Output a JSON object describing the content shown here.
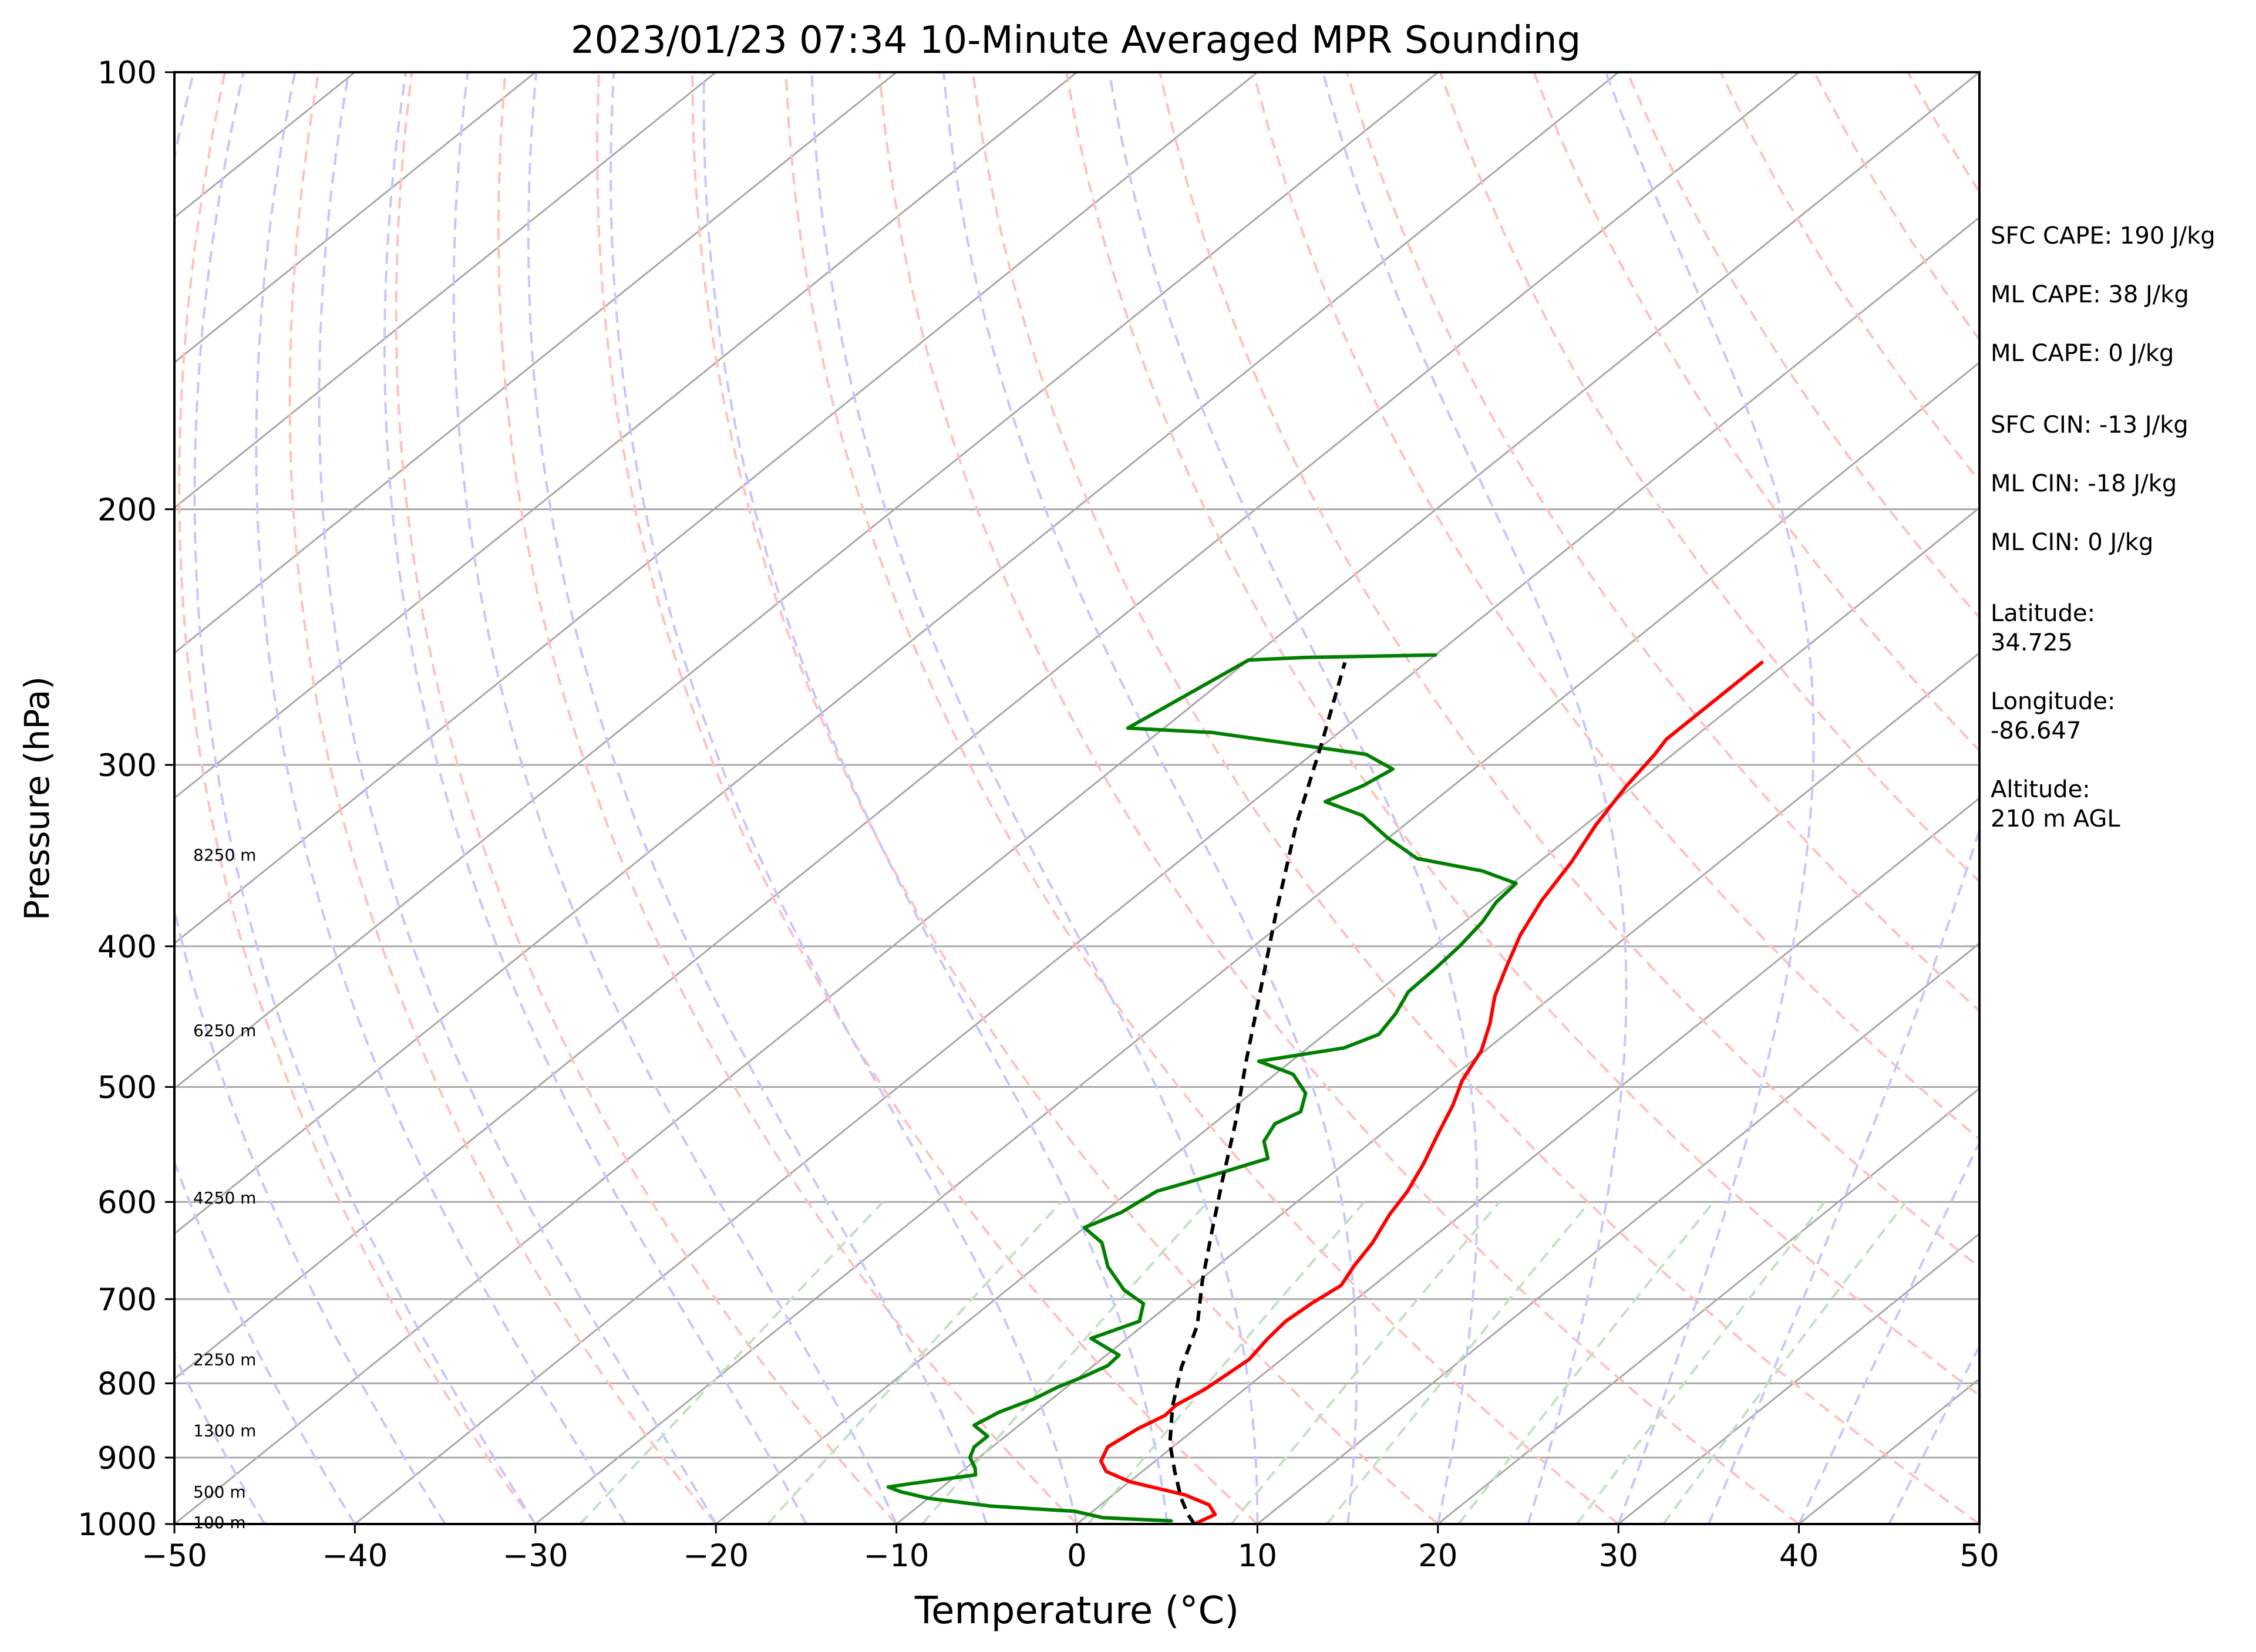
{
  "chart_data": {
    "type": "line",
    "title": "2023/01/23 07:34 10-Minute Averaged MPR Sounding",
    "xlabel": "Temperature (°C)",
    "ylabel": "Pressure (hPa)",
    "x_axis": {
      "min": -50,
      "max": 50,
      "ticks": [
        "−50",
        "−40",
        "−30",
        "−20",
        "−10",
        "0",
        "10",
        "20",
        "30",
        "40",
        "50"
      ]
    },
    "y_axis": {
      "scale": "log",
      "min": 100,
      "max": 1000,
      "ticks": [
        "100",
        "200",
        "300",
        "400",
        "500",
        "600",
        "700",
        "800",
        "900",
        "1000"
      ]
    },
    "skew": "skew-T log-P",
    "background_lines": {
      "isotherms": {
        "color": "#a9a9a9"
      },
      "dry_adiabats": {
        "color": "#ffc0c0"
      },
      "moist_adiabats": {
        "color": "#c6c6ff"
      },
      "mixing_ratio_lines": {
        "color": "#c3e0c3"
      }
    },
    "series": [
      {
        "kind": "temperature",
        "color": "#ff0000",
        "points": [
          [
            1000,
            6.5
          ],
          [
            985,
            7
          ],
          [
            970,
            6
          ],
          [
            955,
            4
          ],
          [
            935,
            0
          ],
          [
            920,
            -2
          ],
          [
            905,
            -3
          ],
          [
            885,
            -3.6
          ],
          [
            860,
            -3.2
          ],
          [
            842,
            -2.6
          ],
          [
            828,
            -2.7
          ],
          [
            808,
            -2.2
          ],
          [
            790,
            -2
          ],
          [
            770,
            -1.8
          ],
          [
            745,
            -2.2
          ],
          [
            725,
            -2.4
          ],
          [
            705,
            -2.2
          ],
          [
            685,
            -1.8
          ],
          [
            665,
            -2.4
          ],
          [
            640,
            -3
          ],
          [
            612,
            -4
          ],
          [
            590,
            -4.6
          ],
          [
            565,
            -5.6
          ],
          [
            540,
            -6.8
          ],
          [
            515,
            -8
          ],
          [
            495,
            -9.2
          ],
          [
            472,
            -10.2
          ],
          [
            452,
            -11.6
          ],
          [
            433,
            -13.2
          ],
          [
            413,
            -14.6
          ],
          [
            393,
            -16
          ],
          [
            372,
            -17.2
          ],
          [
            350,
            -18.2
          ],
          [
            330,
            -19.4
          ],
          [
            310,
            -20.4
          ],
          [
            295,
            -21
          ],
          [
            288,
            -21.4
          ],
          [
            270,
            -21.4
          ],
          [
            255,
            -21.4
          ]
        ]
      },
      {
        "kind": "dewpoint",
        "color": "#008000",
        "points": [
          [
            995,
            5
          ],
          [
            990,
            1
          ],
          [
            980,
            -1
          ],
          [
            972,
            -6
          ],
          [
            960,
            -10
          ],
          [
            950,
            -12
          ],
          [
            943,
            -13
          ],
          [
            938,
            -12
          ],
          [
            925,
            -9
          ],
          [
            915,
            -9.5
          ],
          [
            900,
            -10.5
          ],
          [
            885,
            -11
          ],
          [
            870,
            -11
          ],
          [
            855,
            -12.5
          ],
          [
            837,
            -12
          ],
          [
            820,
            -11
          ],
          [
            805,
            -10.5
          ],
          [
            792,
            -9.8
          ],
          [
            778,
            -9.2
          ],
          [
            765,
            -9.3
          ],
          [
            745,
            -12
          ],
          [
            725,
            -10.5
          ],
          [
            705,
            -11.5
          ],
          [
            690,
            -13.5
          ],
          [
            665,
            -16
          ],
          [
            640,
            -18
          ],
          [
            625,
            -20
          ],
          [
            610,
            -19
          ],
          [
            590,
            -18.5
          ],
          [
            575,
            -16.5
          ],
          [
            560,
            -14.6
          ],
          [
            545,
            -16
          ],
          [
            530,
            -16.6
          ],
          [
            520,
            -16
          ],
          [
            505,
            -17
          ],
          [
            490,
            -19
          ],
          [
            480,
            -21.8
          ],
          [
            470,
            -18
          ],
          [
            460,
            -17
          ],
          [
            445,
            -17.5
          ],
          [
            430,
            -18.3
          ],
          [
            415,
            -18.4
          ],
          [
            400,
            -18.6
          ],
          [
            385,
            -19
          ],
          [
            373,
            -19.6
          ],
          [
            362,
            -19.8
          ],
          [
            355,
            -22.5
          ],
          [
            348,
            -27
          ],
          [
            337,
            -30
          ],
          [
            325,
            -33
          ],
          [
            318,
            -36
          ],
          [
            310,
            -35
          ],
          [
            302,
            -34.5
          ],
          [
            295,
            -37
          ],
          [
            285,
            -47
          ],
          [
            283,
            -52
          ],
          [
            254,
            -50
          ],
          [
            253,
            -47
          ],
          [
            252,
            -40
          ]
        ]
      },
      {
        "kind": "parcel",
        "color": "#000000",
        "style": "dashed",
        "points": [
          [
            1000,
            6.5
          ],
          [
            985,
            5.5
          ],
          [
            960,
            4
          ],
          [
            920,
            1.8
          ],
          [
            880,
            -0.4
          ],
          [
            830,
            -2.8
          ],
          [
            780,
            -5
          ],
          [
            730,
            -7
          ],
          [
            680,
            -9.8
          ],
          [
            630,
            -12.6
          ],
          [
            580,
            -15.6
          ],
          [
            530,
            -18.8
          ],
          [
            480,
            -22.5
          ],
          [
            430,
            -26.5
          ],
          [
            380,
            -31
          ],
          [
            330,
            -36
          ],
          [
            290,
            -40.2
          ],
          [
            255,
            -44.5
          ]
        ]
      }
    ],
    "height_labels": [
      "100 m",
      "500 m",
      "1300 m",
      "2250 m",
      "4250 m",
      "6250 m",
      "8250 m"
    ],
    "info_panel": {
      "sfc_cape": "SFC CAPE: 190 J/kg",
      "ml_cape": "ML CAPE: 38 J/kg",
      "ml_cape_2": "ML CAPE: 0 J/kg",
      "sfc_cin": "SFC CIN: -13 J/kg",
      "ml_cin": "ML CIN: -18 J/kg",
      "ml_cin_2": "ML CIN: 0 J/kg",
      "latitude_label": "Latitude:",
      "latitude_value": "34.725",
      "longitude_label": "Longitude:",
      "longitude_value": "-86.647",
      "altitude_label": "Altitude:",
      "altitude_value": "210 m AGL"
    }
  }
}
